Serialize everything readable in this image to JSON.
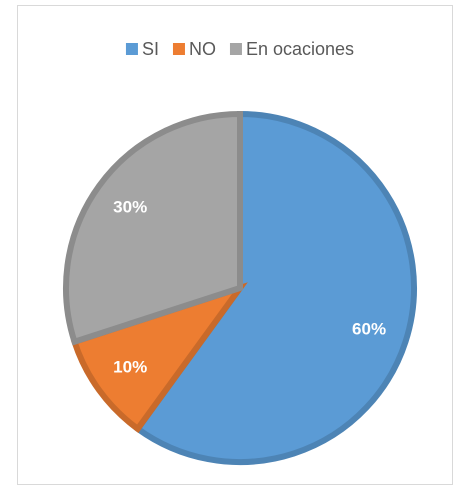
{
  "chart_data": {
    "type": "pie",
    "categories": [
      "SI",
      "NO",
      "En ocaciones"
    ],
    "values": [
      60,
      10,
      30
    ],
    "value_labels": [
      "60%",
      "10%",
      "30%"
    ],
    "colors": [
      "#5b9bd5",
      "#ed7d31",
      "#a5a5a5"
    ],
    "legend": "top"
  }
}
